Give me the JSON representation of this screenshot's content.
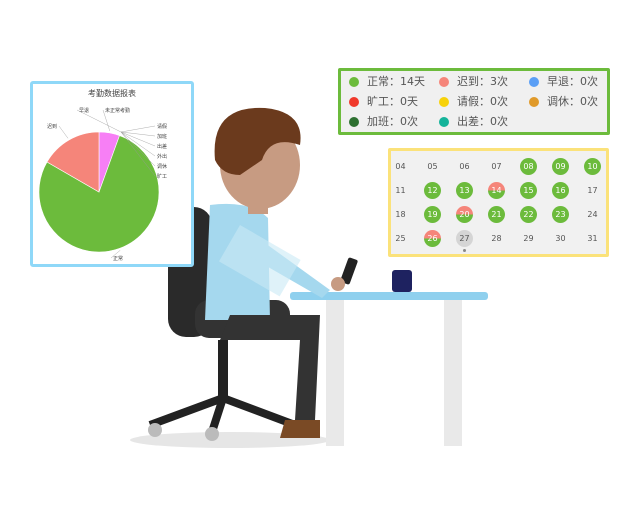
{
  "pie_panel": {
    "title": "考勤数据报表",
    "slices": [
      {
        "label": "正常",
        "value": 14,
        "color": "#6cbb3c"
      },
      {
        "label": "迟到",
        "value": 3,
        "color": "#f5857a"
      },
      {
        "label": "未正常考勤",
        "value": 1,
        "color": "#f77ff5"
      }
    ],
    "zero_labels": [
      "早退",
      "请假",
      "加班",
      "出差",
      "外出",
      "调休",
      "旷工"
    ]
  },
  "legend": [
    {
      "label": "正常：14天",
      "color": "#6cbb3c"
    },
    {
      "label": "迟到：3次",
      "color": "#f5857a"
    },
    {
      "label": "早退：0次",
      "color": "#5b9ff5"
    },
    {
      "label": "旷工：0天",
      "color": "#f0392b"
    },
    {
      "label": "请假：0次",
      "color": "#f7d20a"
    },
    {
      "label": "调休：0次",
      "color": "#e09a2a"
    },
    {
      "label": "加班：0次",
      "color": "#2e7031"
    },
    {
      "label": "出差：0次",
      "color": "#14b39a"
    }
  ],
  "calendar": {
    "days": [
      {
        "d": "04",
        "s": ""
      },
      {
        "d": "05",
        "s": ""
      },
      {
        "d": "06",
        "s": ""
      },
      {
        "d": "07",
        "s": ""
      },
      {
        "d": "08",
        "s": "ok"
      },
      {
        "d": "09",
        "s": "ok"
      },
      {
        "d": "10",
        "s": "ok"
      },
      {
        "d": "11",
        "s": ""
      },
      {
        "d": "12",
        "s": "ok"
      },
      {
        "d": "13",
        "s": "ok"
      },
      {
        "d": "14",
        "s": "late"
      },
      {
        "d": "15",
        "s": "ok"
      },
      {
        "d": "16",
        "s": "ok"
      },
      {
        "d": "17",
        "s": ""
      },
      {
        "d": "18",
        "s": ""
      },
      {
        "d": "19",
        "s": "ok"
      },
      {
        "d": "20",
        "s": "late"
      },
      {
        "d": "21",
        "s": "ok"
      },
      {
        "d": "22",
        "s": "ok"
      },
      {
        "d": "23",
        "s": "ok"
      },
      {
        "d": "24",
        "s": ""
      },
      {
        "d": "25",
        "s": ""
      },
      {
        "d": "26",
        "s": "late"
      },
      {
        "d": "27",
        "s": "today"
      },
      {
        "d": "28",
        "s": ""
      },
      {
        "d": "29",
        "s": ""
      },
      {
        "d": "30",
        "s": ""
      },
      {
        "d": "31",
        "s": ""
      }
    ]
  }
}
